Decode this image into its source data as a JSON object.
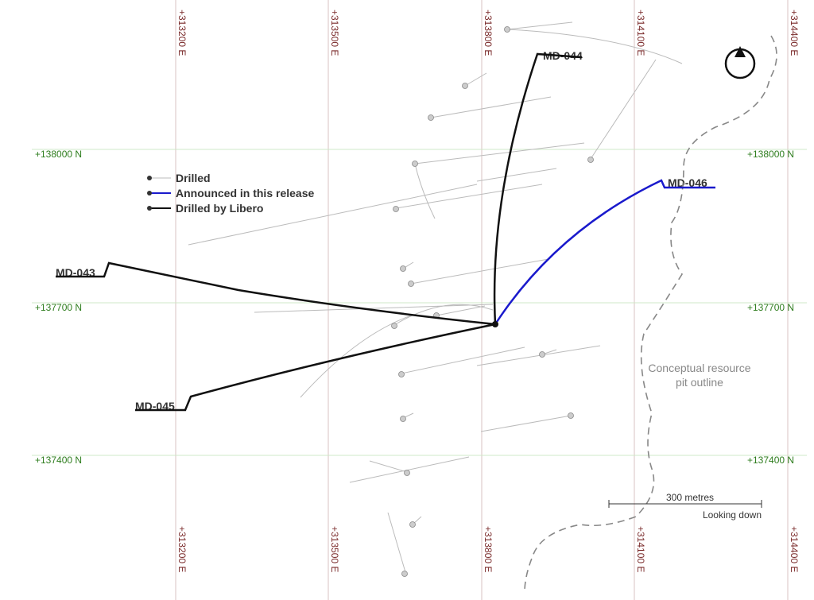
{
  "grid": {
    "eastings": [
      "+313200 E",
      "+313500 E",
      "+313800 E",
      "+314100 E",
      "+314400 E"
    ],
    "northings": [
      "+138000 N",
      "+137700 N",
      "+137400 N"
    ]
  },
  "legend": {
    "items": [
      "Drilled",
      "Announced in this release",
      "Drilled by Libero"
    ]
  },
  "holes": [
    "MD-044",
    "MD-043",
    "MD-045",
    "MD-046"
  ],
  "pit_label": [
    "Conceptual resource",
    "pit outline"
  ],
  "scale_bar": {
    "label": "300 metres",
    "view": "Looking down"
  },
  "compass": "N"
}
